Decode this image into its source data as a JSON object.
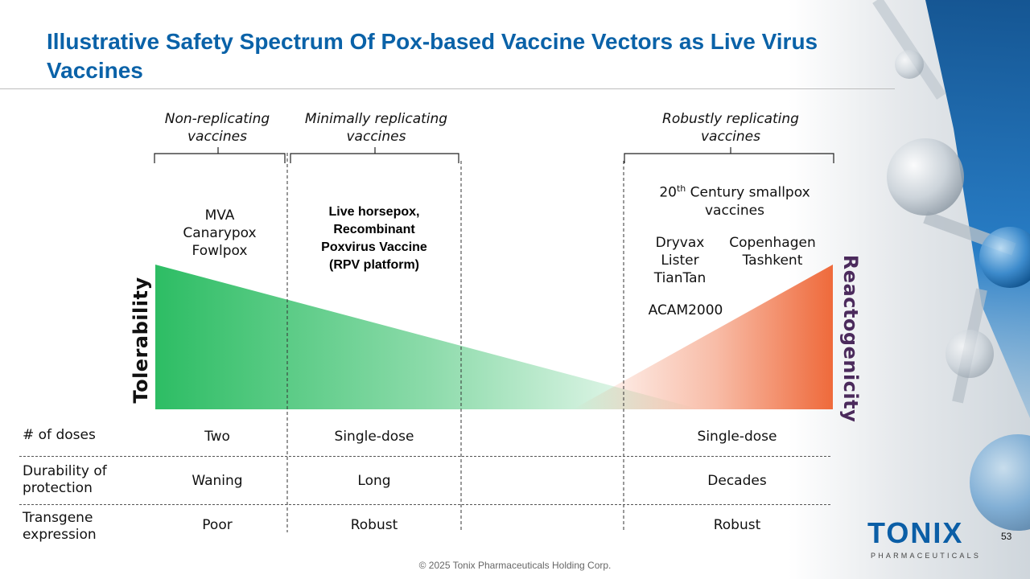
{
  "slide": {
    "title": "Illustrative Safety Spectrum Of Pox-based Vaccine Vectors as Live Virus Vaccines",
    "page_number": "53",
    "footer": "© 2025 Tonix Pharmaceuticals Holding Corp."
  },
  "categories": {
    "non_replicating": "Non-replicating vaccines",
    "minimally_replicating": "Minimally replicating vaccines",
    "robustly_replicating": "Robustly replicating vaccines"
  },
  "vaccines": {
    "non_replicating": [
      "MVA",
      "Canarypox",
      "Fowlpox"
    ],
    "minimally_replicating": [
      "Live horsepox,",
      "Recombinant",
      "Poxvirus Vaccine",
      "(RPV platform)"
    ],
    "robust_heading_pre": "20",
    "robust_heading_sup": "th",
    "robust_heading_post": " Century smallpox vaccines",
    "robust_left": [
      "Dryvax",
      "Lister",
      "TianTan"
    ],
    "robust_right": [
      "Copenhagen",
      "Tashkent"
    ],
    "robust_extra": "ACAM2000"
  },
  "axes": {
    "left_label": "Tolerability",
    "right_label": "Reactogenicity"
  },
  "colors": {
    "title": "#0a62a8",
    "tolerability_green": "#2dbd64",
    "reactogenicity_orange": "#ef6a3b",
    "reactogenicity_label": "#4b2a5c",
    "logo_blue": "#0b5ea6"
  },
  "table": {
    "rows": [
      {
        "label": "# of doses",
        "non_replicating": "Two",
        "minimally_replicating": "Single-dose",
        "robustly_replicating": "Single-dose"
      },
      {
        "label": "Durability of protection",
        "non_replicating": "Waning",
        "minimally_replicating": "Long",
        "robustly_replicating": "Decades"
      },
      {
        "label": "Transgene expression",
        "non_replicating": "Poor",
        "minimally_replicating": "Robust",
        "robustly_replicating": "Robust"
      }
    ]
  },
  "logo": {
    "name": "TONIX",
    "subtitle": "PHARMACEUTICALS"
  }
}
